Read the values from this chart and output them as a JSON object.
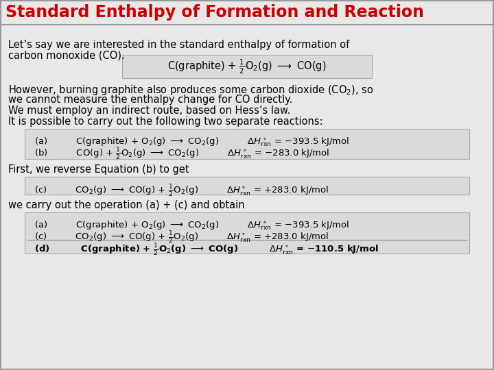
{
  "title": "Standard Enthalpy of Formation and Reaction",
  "title_color": "#CC0000",
  "bg_color": "#E8E8E8",
  "title_bg": "#E0E0E0",
  "para1_line1": "Let’s say we are interested in the standard enthalpy of formation of",
  "para1_line2": "carbon monoxide (CO).",
  "para2_lines": [
    "However, burning graphite also produces some carbon dioxide (CO₂), so",
    "we cannot measure the enthalpy change for CO directly.",
    "We must employ an indirect route, based on Hess’s law.",
    "It is possible to carry out the following two separate reactions:"
  ],
  "para3": "First, we reverse Equation (b) to get",
  "para4": "we carry out the operation (a) + (c) and obtain"
}
